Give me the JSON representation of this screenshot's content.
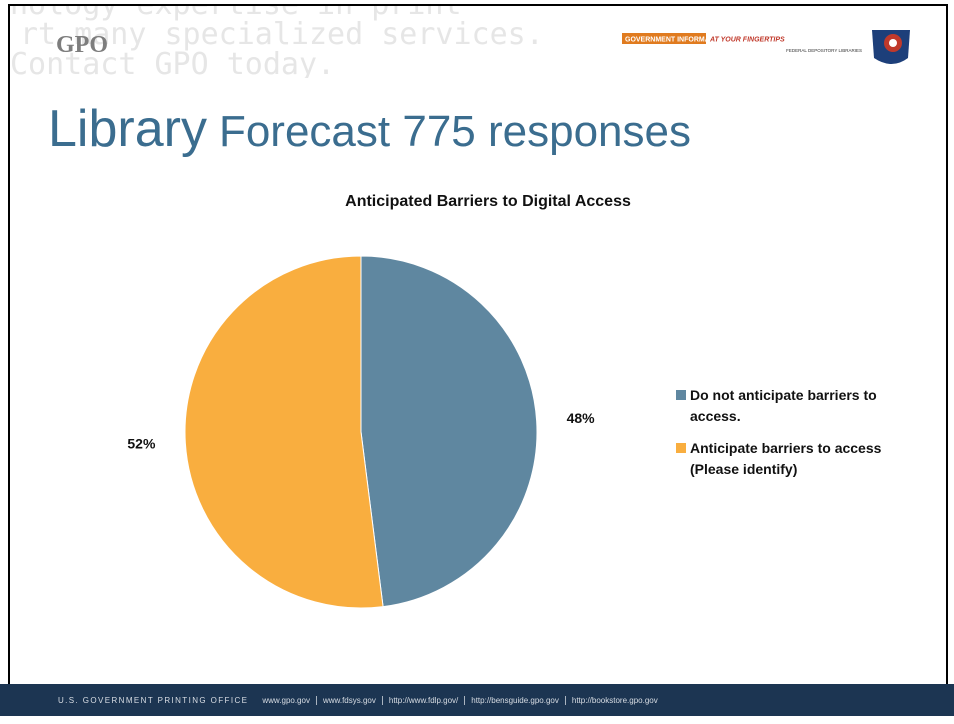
{
  "header": {
    "watermark": [
      "nology expertise in print",
      "rt many specialized services.",
      "Contact GPO today."
    ],
    "logo": "GPO",
    "badge_main": "GOVERNMENT INFORMATION",
    "badge_accent": "AT YOUR FINGERTIPS",
    "badge_sub": "FEDERAL DEPOSITORY LIBRARIES",
    "title_lead": "Library",
    "title_rest": "Forecast 775 responses"
  },
  "chart_data": {
    "type": "pie",
    "title": "Anticipated Barriers to Digital Access",
    "categories": [
      "Do not anticipate barriers to access.",
      "Anticipate barriers to access (Please identify)"
    ],
    "values": [
      48,
      52
    ],
    "value_labels": [
      "48%",
      "52%"
    ],
    "colors": [
      "#5f87a0",
      "#f9ae3f"
    ],
    "legend": "right"
  },
  "footer": {
    "org": "U.S. GOVERNMENT PRINTING OFFICE",
    "links": [
      "www.gpo.gov",
      "www.fdsys.gov",
      "http://www.fdlp.gov/",
      "http://bensguide.gpo.gov",
      "http://bookstore.gpo.gov"
    ]
  }
}
